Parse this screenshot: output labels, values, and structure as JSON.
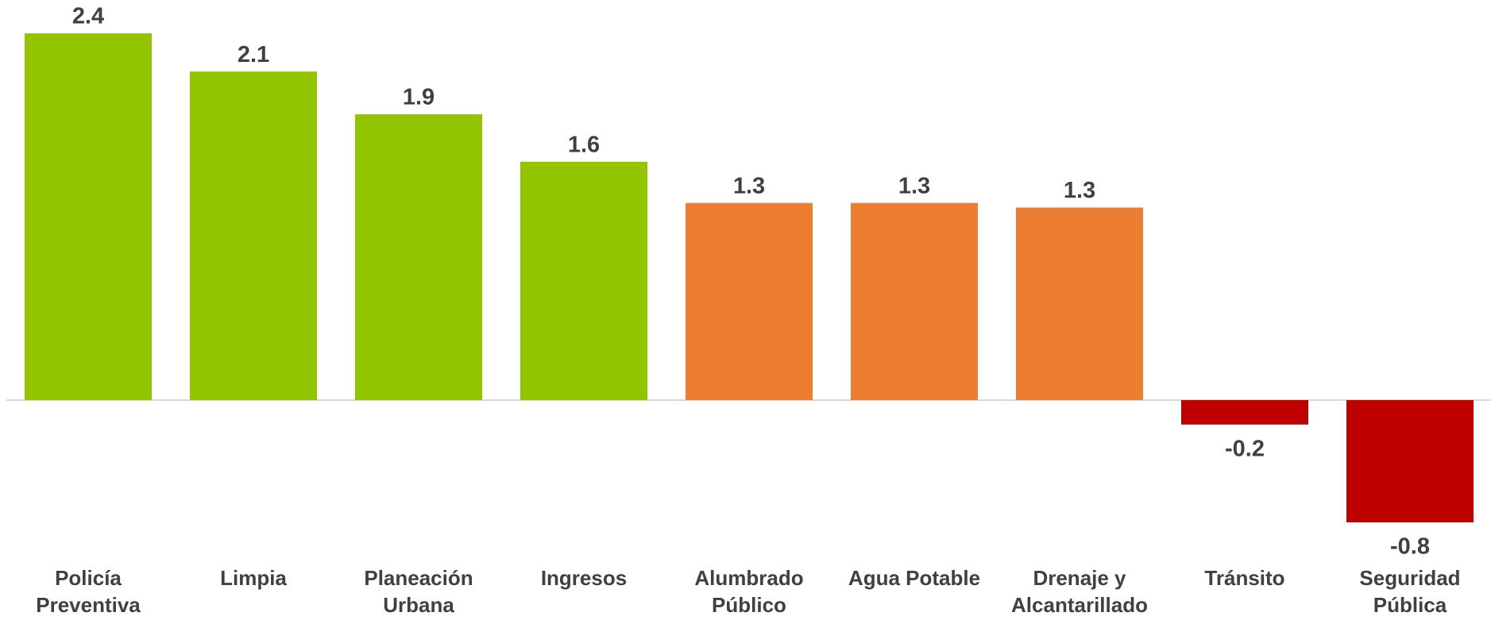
{
  "chart_data": {
    "type": "bar",
    "categories": [
      [
        "Policía",
        "Preventiva"
      ],
      [
        "Limpia"
      ],
      [
        "Planeación",
        "Urbana"
      ],
      [
        "Ingresos"
      ],
      [
        "Alumbrado",
        "Público"
      ],
      [
        "Agua Potable"
      ],
      [
        "Drenaje y",
        "Alcantarillado"
      ],
      [
        "Tránsito"
      ],
      [
        "Seguridad",
        "Pública"
      ]
    ],
    "values": [
      2.4,
      2.15,
      1.87,
      1.56,
      1.29,
      1.29,
      1.26,
      -0.16,
      -0.8
    ],
    "value_labels": [
      "2.4",
      "2.1",
      "1.9",
      "1.6",
      "1.3",
      "1.3",
      "1.3",
      "-0.2",
      "-0.8"
    ],
    "colors": [
      "#92c500",
      "#92c500",
      "#92c500",
      "#92c500",
      "#ed7d31",
      "#ed7d31",
      "#ed7d31",
      "#c00000",
      "#c00000"
    ]
  }
}
